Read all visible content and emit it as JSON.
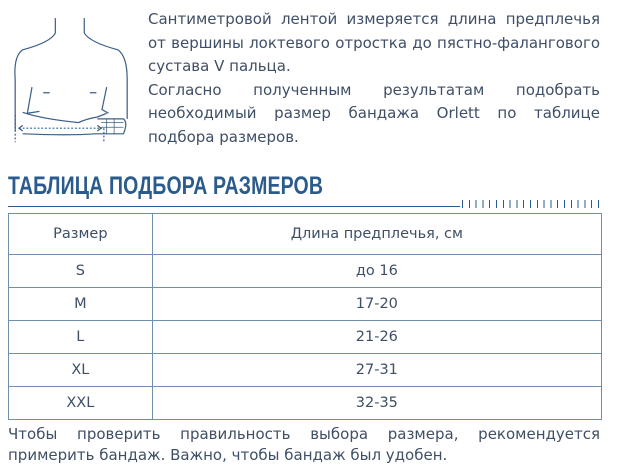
{
  "intro": {
    "p1": "Сантиметровой лентой измеряется длина предплечья от вершины локтевого отростка до пястно-фалангового сустава V пальца.",
    "p2": "Согласно полученным результатам подобрать необходимый размер бандажа Orlett по таблице подбора размеров."
  },
  "heading": "ТАБЛИЦА ПОДБОРА РАЗМЕРОВ",
  "table": {
    "headers": [
      "Размер",
      "Длина предплечья, см"
    ],
    "rows": [
      [
        "S",
        "до 16"
      ],
      [
        "M",
        "17-20"
      ],
      [
        "L",
        "21-26"
      ],
      [
        "XL",
        "27-31"
      ],
      [
        "XXL",
        "32-35"
      ]
    ]
  },
  "footer": "Чтобы проверить правильность выбора размера, рекомендуется примерить бандаж. Важно, чтобы бандаж был удобен.",
  "colors": {
    "heading": "#2a5b8c",
    "text": "#3e4f66",
    "border": "#6f8fb0"
  }
}
